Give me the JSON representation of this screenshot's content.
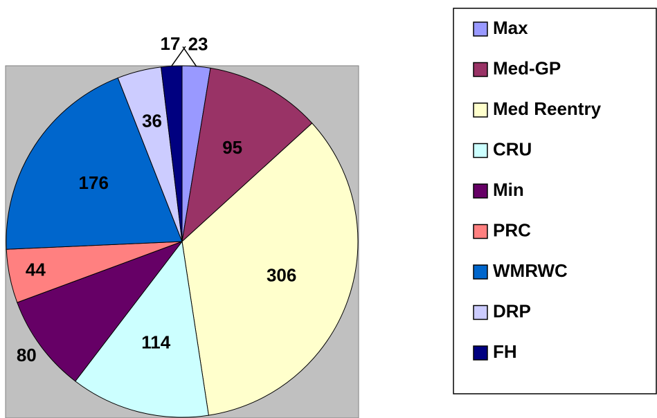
{
  "chart_data": {
    "type": "pie",
    "categories": [
      "Max",
      "Med-GP",
      "Med Reentry",
      "CRU",
      "Min",
      "PRC",
      "WMRWC",
      "DRP",
      "FH"
    ],
    "values": [
      23,
      95,
      306,
      114,
      80,
      44,
      176,
      36,
      17
    ],
    "colors": [
      "#9999ff",
      "#993366",
      "#ffffcc",
      "#ccffff",
      "#660066",
      "#ff8080",
      "#0066cc",
      "#ccccff",
      "#000080"
    ],
    "legend": "right"
  }
}
